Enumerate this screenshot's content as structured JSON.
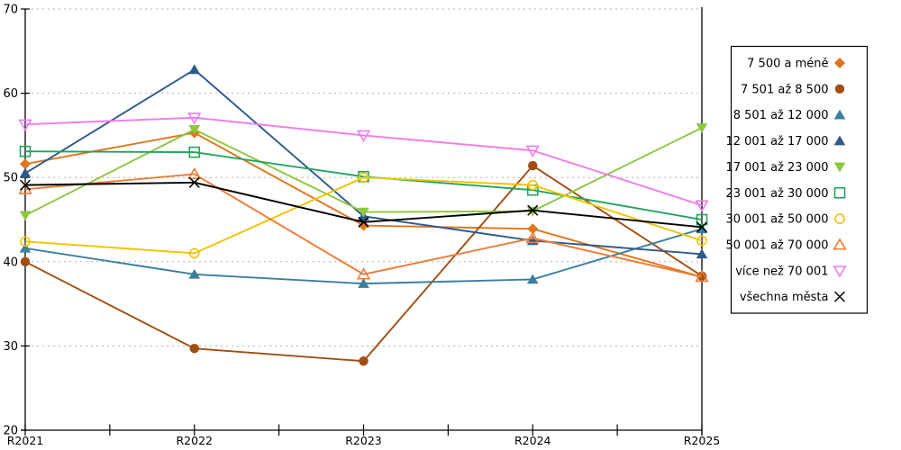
{
  "chart_data": {
    "type": "line",
    "title": "",
    "xlabel": "",
    "ylabel": "",
    "categories": [
      "R2021",
      "R2022",
      "R2023",
      "R2024",
      "R2025"
    ],
    "ylim": [
      20,
      70
    ],
    "yticks": [
      20,
      30,
      40,
      50,
      60,
      70
    ],
    "grid": "horizontal-dashed",
    "grid_color": "#b0b0b0",
    "axis_color": "#000000",
    "legend_position": "right",
    "series": [
      {
        "name": "7 500 a méně",
        "color": "#e0761c",
        "marker": "diamond-filled",
        "values": [
          51.6,
          55.3,
          44.3,
          43.9,
          38.2
        ]
      },
      {
        "name": "7 501 až 8 500",
        "color": "#a04e12",
        "marker": "circle-filled",
        "values": [
          40.0,
          29.7,
          28.2,
          51.4,
          38.3
        ]
      },
      {
        "name": "8 501 až 12 000",
        "color": "#3b7f9e",
        "marker": "triangle-up-filled",
        "values": [
          41.6,
          38.5,
          37.4,
          37.9,
          43.9
        ]
      },
      {
        "name": "12 001 až 17 000",
        "color": "#2e5a8c",
        "marker": "triangle-up-filled",
        "values": [
          50.5,
          62.8,
          45.4,
          42.5,
          40.9
        ]
      },
      {
        "name": "17 001 až 23 000",
        "color": "#8dc63f",
        "marker": "triangle-down-filled",
        "values": [
          45.5,
          55.7,
          45.9,
          46.0,
          55.9
        ]
      },
      {
        "name": "23 001 až 30 000",
        "color": "#21a45d",
        "marker": "square-open",
        "values": [
          53.1,
          53.0,
          50.1,
          48.5,
          45.0
        ]
      },
      {
        "name": "30 001 až 50 000",
        "color": "#f2c200",
        "marker": "circle-open",
        "values": [
          42.4,
          41.0,
          50.0,
          49.1,
          42.5
        ]
      },
      {
        "name": "50 001 až 70 000",
        "color": "#ee7b36",
        "marker": "triangle-up-open",
        "values": [
          48.6,
          50.4,
          38.5,
          42.8,
          38.2
        ]
      },
      {
        "name": "více než 70 001",
        "color": "#f07cec",
        "marker": "triangle-down-open",
        "values": [
          56.3,
          57.1,
          55.0,
          53.2,
          46.7
        ]
      },
      {
        "name": "všechna města",
        "color": "#000000",
        "marker": "x",
        "values": [
          49.1,
          49.4,
          44.7,
          46.1,
          44.1
        ]
      }
    ]
  }
}
